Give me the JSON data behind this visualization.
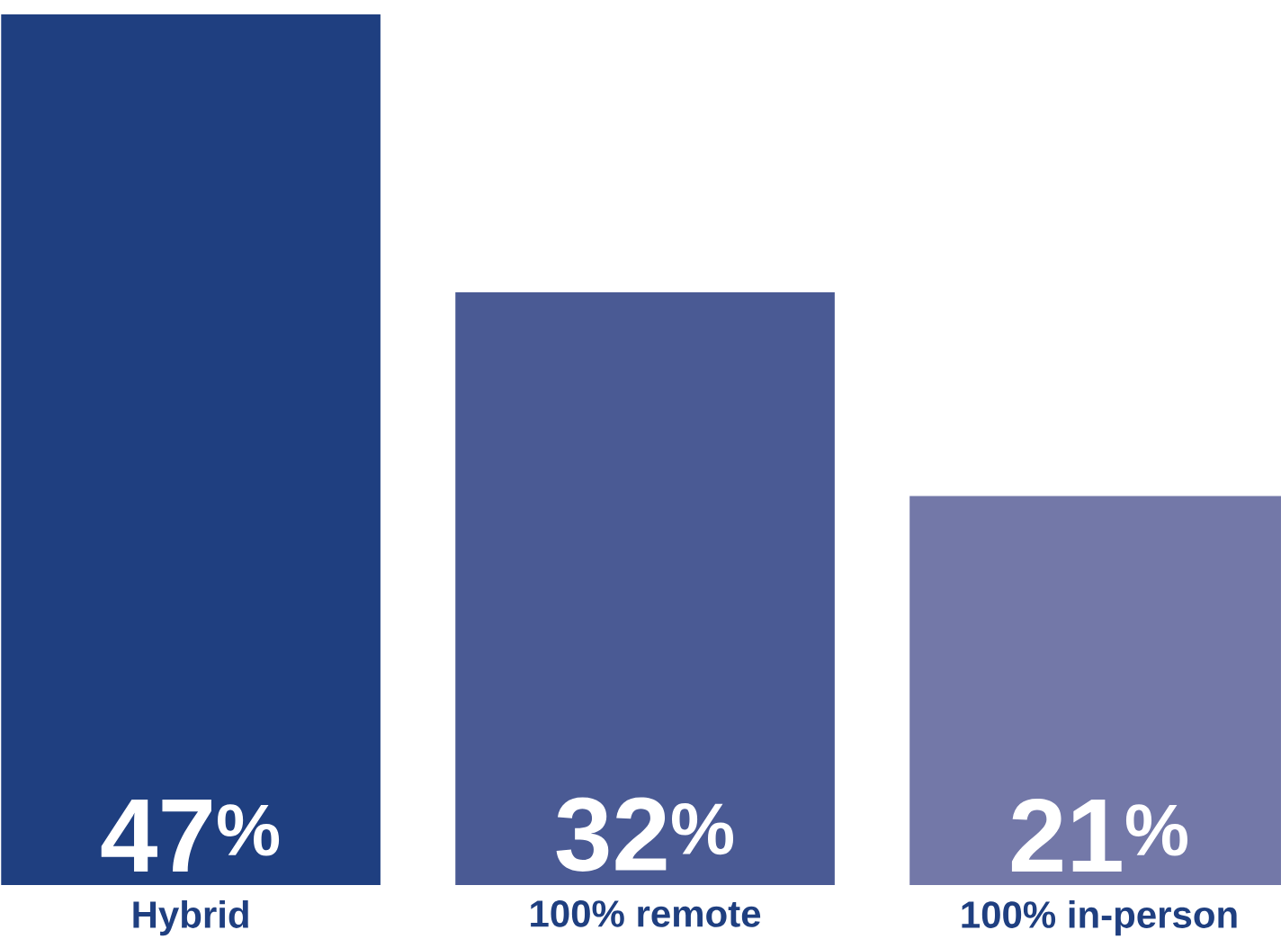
{
  "chart_data": {
    "type": "bar",
    "categories": [
      "Hybrid",
      "100% remote",
      "100% in-person"
    ],
    "values": [
      47,
      32,
      21
    ],
    "colors": [
      "#1f3f80",
      "#4a5a94",
      "#7378a8"
    ],
    "value_labels": [
      "47$^{%}$",
      "32$^{%}$",
      "21$^{%}$"
    ]
  }
}
